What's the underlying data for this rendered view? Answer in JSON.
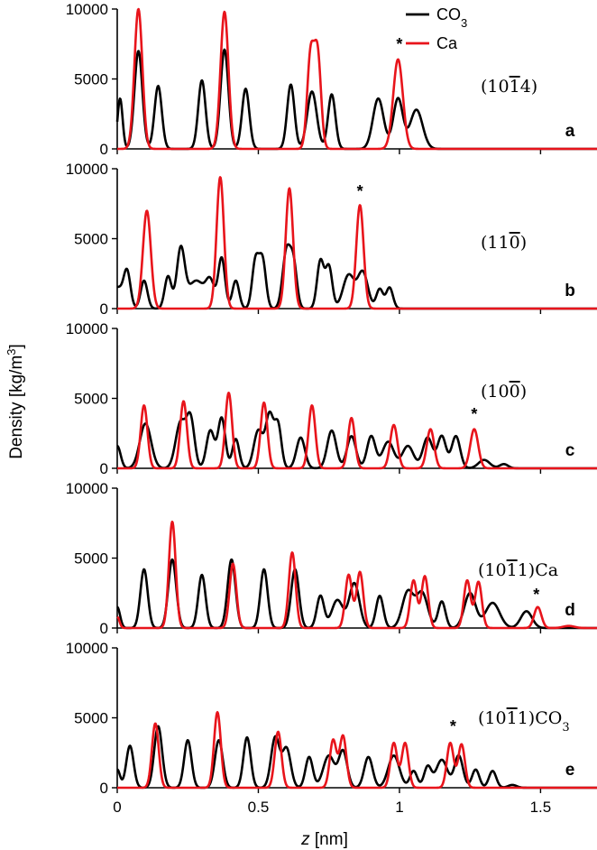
{
  "chart_data": {
    "type": "line",
    "xlabel": "z [nm]",
    "xlabel_parts": {
      "var": "z",
      "unit": " [nm]"
    },
    "ylabel": "Density [kg/m3]",
    "ylabel_parts": {
      "main": "Density [kg/m",
      "sup": "3",
      "end": "]"
    },
    "xlim": [
      0,
      1.7
    ],
    "x_ticks": [
      0,
      0.5,
      1,
      1.5
    ],
    "x_tick_labels": [
      "0",
      "0.5",
      "1",
      "1.5"
    ],
    "ylim": [
      0,
      10000
    ],
    "y_ticks": [
      0,
      5000,
      10000
    ],
    "y_tick_labels": [
      "0",
      "5000",
      "10000"
    ],
    "grid": false,
    "legend_position": "top-right",
    "legend": [
      {
        "label": "CO3",
        "label_main": "CO",
        "label_sub": "3",
        "color": "#000000"
      },
      {
        "label": "Ca",
        "label_main": "Ca",
        "label_sub": "",
        "color": "#e8141b"
      }
    ],
    "series_colors": {
      "CO3": "#000000",
      "Ca": "#e8141b"
    },
    "panels": [
      {
        "label": "a",
        "facet": "(10Ġ14)",
        "annotation": "*",
        "annotation_x": 1.0,
        "annotation_y": 7100,
        "series": [
          {
            "name": "CO3",
            "peaks": [
              [
                0.01,
                3600,
                0.009
              ],
              [
                0.075,
                7000,
                0.014
              ],
              [
                0.145,
                4500,
                0.013
              ],
              [
                0.3,
                4900,
                0.013
              ],
              [
                0.38,
                7100,
                0.014
              ],
              [
                0.455,
                4300,
                0.013
              ],
              [
                0.615,
                4600,
                0.013
              ],
              [
                0.69,
                4100,
                0.017
              ],
              [
                0.76,
                3900,
                0.013
              ],
              [
                0.925,
                3600,
                0.019
              ],
              [
                0.995,
                3600,
                0.017
              ],
              [
                1.06,
                2800,
                0.022
              ]
            ]
          },
          {
            "name": "Ca",
            "peaks": [
              [
                0.075,
                10000,
                0.014
              ],
              [
                0.38,
                9800,
                0.014
              ],
              [
                0.685,
                6600,
                0.012
              ],
              [
                0.71,
                6700,
                0.012
              ],
              [
                0.995,
                6400,
                0.017
              ]
            ]
          }
        ]
      },
      {
        "label": "b",
        "facet": "(11Ġ0)",
        "annotation": "*",
        "annotation_x": 0.86,
        "annotation_y": 8000,
        "series": [
          {
            "name": "CO3",
            "peaks": [
              [
                0.0,
                1500,
                0.02
              ],
              [
                0.035,
                2500,
                0.012
              ],
              [
                0.095,
                2000,
                0.012
              ],
              [
                0.18,
                2300,
                0.012
              ],
              [
                0.225,
                4100,
                0.014
              ],
              [
                0.28,
                2000,
                0.03
              ],
              [
                0.33,
                1700,
                0.015
              ],
              [
                0.37,
                3600,
                0.012
              ],
              [
                0.42,
                2000,
                0.012
              ],
              [
                0.49,
                3400,
                0.012
              ],
              [
                0.515,
                3400,
                0.012
              ],
              [
                0.6,
                4100,
                0.014
              ],
              [
                0.625,
                3000,
                0.012
              ],
              [
                0.72,
                3400,
                0.012
              ],
              [
                0.75,
                3000,
                0.012
              ],
              [
                0.82,
                2400,
                0.02
              ],
              [
                0.87,
                2600,
                0.018
              ],
              [
                0.93,
                1400,
                0.012
              ],
              [
                0.965,
                1500,
                0.012
              ]
            ]
          },
          {
            "name": "Ca",
            "peaks": [
              [
                0.105,
                7000,
                0.014
              ],
              [
                0.365,
                9400,
                0.013
              ],
              [
                0.61,
                8600,
                0.013
              ],
              [
                0.86,
                7400,
                0.013
              ]
            ]
          }
        ]
      },
      {
        "label": "c",
        "facet": "(10Ġ0)",
        "annotation": "*",
        "annotation_x": 1.265,
        "annotation_y": 3500,
        "series": [
          {
            "name": "CO3",
            "peaks": [
              [
                0.0,
                1600,
                0.012
              ],
              [
                0.1,
                3200,
                0.02
              ],
              [
                0.225,
                3300,
                0.018
              ],
              [
                0.26,
                3400,
                0.014
              ],
              [
                0.33,
                2700,
                0.014
              ],
              [
                0.37,
                3600,
                0.013
              ],
              [
                0.42,
                2100,
                0.012
              ],
              [
                0.5,
                2700,
                0.016
              ],
              [
                0.54,
                3800,
                0.014
              ],
              [
                0.57,
                3000,
                0.012
              ],
              [
                0.65,
                2200,
                0.015
              ],
              [
                0.76,
                2700,
                0.016
              ],
              [
                0.83,
                2300,
                0.016
              ],
              [
                0.9,
                2300,
                0.015
              ],
              [
                0.96,
                1900,
                0.02
              ],
              [
                1.03,
                1600,
                0.02
              ],
              [
                1.1,
                2200,
                0.017
              ],
              [
                1.15,
                2300,
                0.015
              ],
              [
                1.2,
                2300,
                0.015
              ],
              [
                1.3,
                600,
                0.02
              ],
              [
                1.37,
                300,
                0.015
              ]
            ]
          },
          {
            "name": "Ca",
            "peaks": [
              [
                0.095,
                4500,
                0.012
              ],
              [
                0.235,
                4800,
                0.012
              ],
              [
                0.395,
                5400,
                0.012
              ],
              [
                0.52,
                4700,
                0.012
              ],
              [
                0.69,
                4500,
                0.012
              ],
              [
                0.83,
                3600,
                0.012
              ],
              [
                0.98,
                3100,
                0.013
              ],
              [
                1.11,
                2800,
                0.013
              ],
              [
                1.265,
                2800,
                0.014
              ]
            ]
          }
        ]
      },
      {
        "label": "d",
        "facet": "(10Ġ11)Ca",
        "annotation": "*",
        "annotation_x": 1.485,
        "annotation_y": 2000,
        "series": [
          {
            "name": "CO3",
            "peaks": [
              [
                0.0,
                1500,
                0.01
              ],
              [
                0.095,
                4200,
                0.013
              ],
              [
                0.195,
                4900,
                0.014
              ],
              [
                0.3,
                3800,
                0.013
              ],
              [
                0.405,
                4900,
                0.014
              ],
              [
                0.52,
                4200,
                0.013
              ],
              [
                0.63,
                4200,
                0.014
              ],
              [
                0.72,
                2300,
                0.013
              ],
              [
                0.78,
                2000,
                0.02
              ],
              [
                0.84,
                3200,
                0.018
              ],
              [
                0.93,
                2300,
                0.013
              ],
              [
                1.03,
                2600,
                0.02
              ],
              [
                1.08,
                2500,
                0.02
              ],
              [
                1.15,
                1900,
                0.013
              ],
              [
                1.25,
                2500,
                0.02
              ],
              [
                1.33,
                1800,
                0.025
              ],
              [
                1.45,
                1200,
                0.02
              ]
            ]
          },
          {
            "name": "Ca",
            "peaks": [
              [
                0.0,
                800,
                0.008
              ],
              [
                0.195,
                7600,
                0.012
              ],
              [
                0.41,
                4600,
                0.012
              ],
              [
                0.62,
                5400,
                0.012
              ],
              [
                0.82,
                3800,
                0.012
              ],
              [
                0.86,
                4000,
                0.012
              ],
              [
                1.05,
                3400,
                0.012
              ],
              [
                1.09,
                3700,
                0.012
              ],
              [
                1.24,
                3400,
                0.012
              ],
              [
                1.28,
                3300,
                0.012
              ],
              [
                1.49,
                1500,
                0.013
              ],
              [
                1.6,
                150,
                0.02
              ]
            ]
          }
        ]
      },
      {
        "label": "e",
        "facet": "(10Ġ11)CO3",
        "annotation": "*",
        "annotation_x": 1.19,
        "annotation_y": 4000,
        "series": [
          {
            "name": "CO3",
            "peaks": [
              [
                0.0,
                1300,
                0.01
              ],
              [
                0.045,
                3000,
                0.013
              ],
              [
                0.145,
                4400,
                0.014
              ],
              [
                0.25,
                3400,
                0.013
              ],
              [
                0.36,
                3400,
                0.014
              ],
              [
                0.46,
                3600,
                0.013
              ],
              [
                0.56,
                3600,
                0.015
              ],
              [
                0.6,
                2800,
                0.015
              ],
              [
                0.68,
                2200,
                0.013
              ],
              [
                0.75,
                2300,
                0.02
              ],
              [
                0.8,
                2600,
                0.015
              ],
              [
                0.89,
                2200,
                0.015
              ],
              [
                0.98,
                2300,
                0.02
              ],
              [
                1.05,
                1200,
                0.013
              ],
              [
                1.1,
                1500,
                0.013
              ],
              [
                1.15,
                2000,
                0.02
              ],
              [
                1.21,
                2300,
                0.015
              ],
              [
                1.27,
                1300,
                0.013
              ],
              [
                1.33,
                1200,
                0.013
              ],
              [
                1.4,
                200,
                0.015
              ]
            ]
          },
          {
            "name": "Ca",
            "peaks": [
              [
                0.135,
                4600,
                0.012
              ],
              [
                0.355,
                5400,
                0.012
              ],
              [
                0.57,
                4000,
                0.012
              ],
              [
                0.765,
                3400,
                0.012
              ],
              [
                0.8,
                3700,
                0.012
              ],
              [
                0.98,
                3200,
                0.012
              ],
              [
                1.02,
                3200,
                0.012
              ],
              [
                1.18,
                3200,
                0.012
              ],
              [
                1.22,
                3100,
                0.012
              ]
            ]
          }
        ]
      }
    ]
  }
}
